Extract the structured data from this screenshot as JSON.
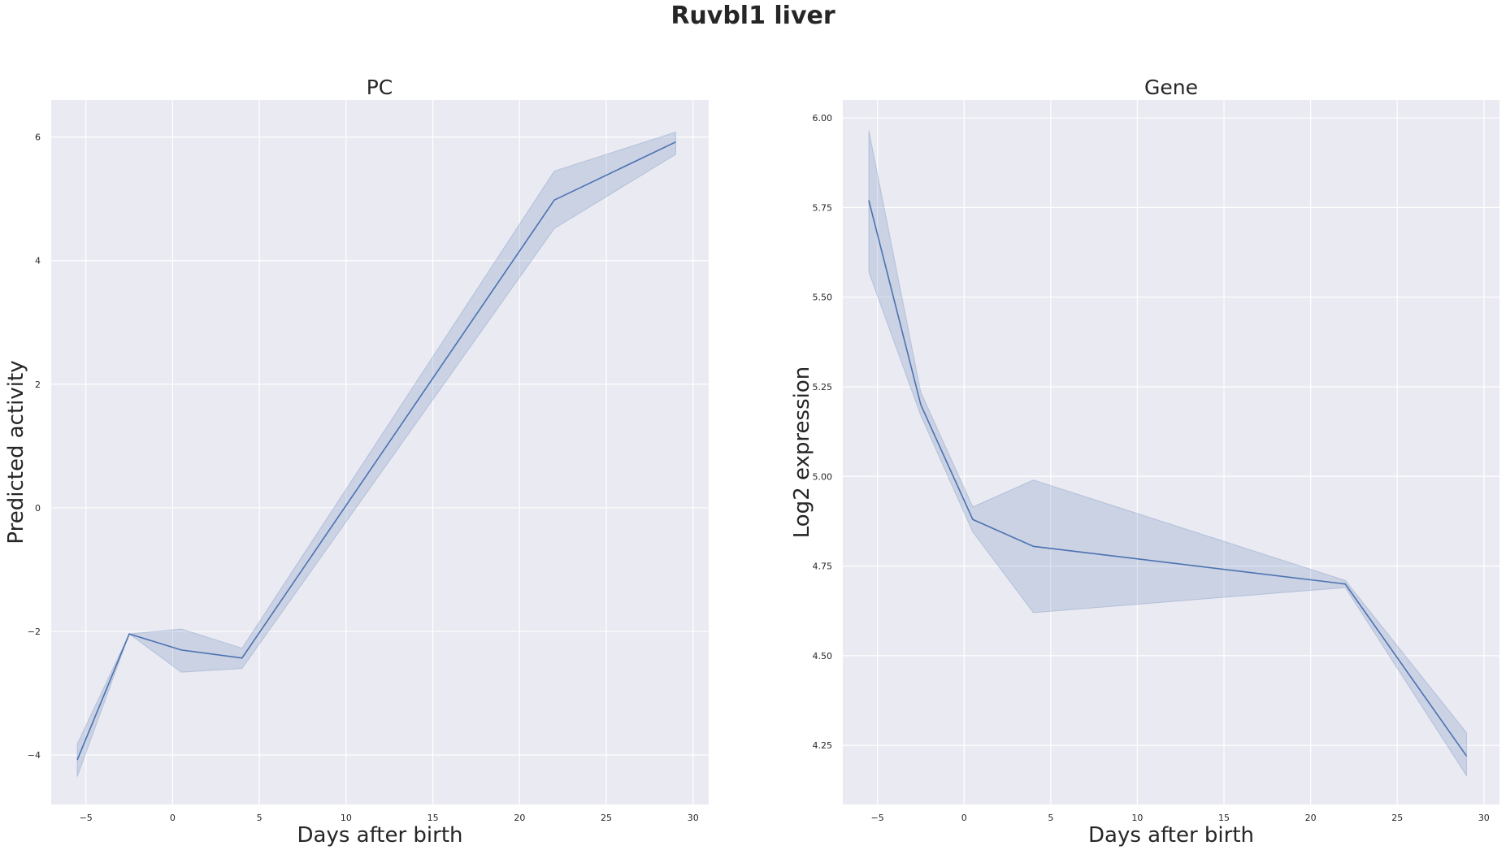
{
  "figure": {
    "title": "Ruvbl1 liver"
  },
  "chart_data": [
    {
      "type": "line",
      "title": "PC",
      "xlabel": "Days after birth",
      "ylabel": "Predicted activity",
      "xlim": [
        -7.0,
        30.9
      ],
      "ylim": [
        -4.8,
        6.6
      ],
      "xticks": [
        -5,
        0,
        5,
        10,
        15,
        20,
        25,
        30
      ],
      "xtick_labels": [
        "−5",
        "0",
        "5",
        "10",
        "15",
        "20",
        "25",
        "30"
      ],
      "yticks": [
        -4,
        -2,
        0,
        2,
        4,
        6
      ],
      "ytick_labels": [
        "−4",
        "−2",
        "0",
        "2",
        "4",
        "6"
      ],
      "grid": true,
      "series": [
        {
          "x": [
            -5.5,
            -2.5,
            0.5,
            4,
            22,
            29
          ],
          "y": [
            -4.08,
            -2.04,
            -2.3,
            -2.43,
            4.98,
            5.92
          ],
          "ci_lower": [
            -4.35,
            -2.04,
            -2.66,
            -2.6,
            4.52,
            5.72
          ],
          "ci_upper": [
            -3.82,
            -2.04,
            -1.96,
            -2.27,
            5.45,
            6.08
          ],
          "color": "#4c72b0"
        }
      ]
    },
    {
      "type": "line",
      "title": "Gene",
      "xlabel": "Days after birth",
      "ylabel": "Log2 expression",
      "xlim": [
        -7.0,
        30.9
      ],
      "ylim": [
        4.085,
        6.05
      ],
      "xticks": [
        -5,
        0,
        5,
        10,
        15,
        20,
        25,
        30
      ],
      "xtick_labels": [
        "−5",
        "0",
        "5",
        "10",
        "15",
        "20",
        "25",
        "30"
      ],
      "yticks": [
        4.25,
        4.5,
        4.75,
        5.0,
        5.25,
        5.5,
        5.75,
        6.0
      ],
      "ytick_labels": [
        "4.25",
        "4.50",
        "4.75",
        "5.00",
        "5.25",
        "5.50",
        "5.75",
        "6.00"
      ],
      "grid": true,
      "series": [
        {
          "x": [
            -5.5,
            -2.5,
            0.5,
            4,
            22,
            29
          ],
          "y": [
            5.77,
            5.2,
            4.88,
            4.805,
            4.7,
            4.22
          ],
          "ci_lower": [
            5.57,
            5.17,
            4.845,
            4.62,
            4.69,
            4.165
          ],
          "ci_upper": [
            5.965,
            5.235,
            4.915,
            4.99,
            4.71,
            4.285
          ],
          "color": "#4c72b0"
        }
      ]
    }
  ]
}
